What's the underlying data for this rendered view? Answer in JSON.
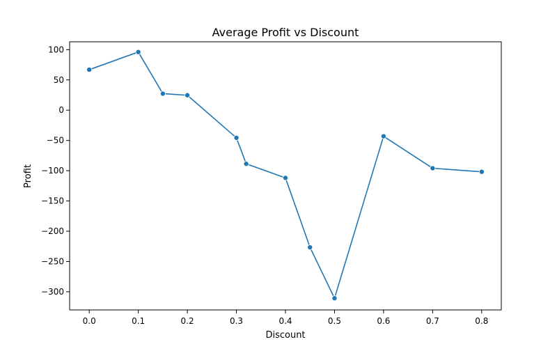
{
  "chart_data": {
    "type": "line",
    "title": "Average Profit vs Discount",
    "xlabel": "Discount",
    "ylabel": "Profit",
    "xlim": [
      -0.04,
      0.84
    ],
    "ylim": [
      -330,
      113
    ],
    "xticks": [
      0.0,
      0.1,
      0.2,
      0.3,
      0.4,
      0.5,
      0.6,
      0.7,
      0.8
    ],
    "xtick_labels": [
      "0.0",
      "0.1",
      "0.2",
      "0.3",
      "0.4",
      "0.5",
      "0.6",
      "0.7",
      "0.8"
    ],
    "yticks": [
      100,
      50,
      0,
      -50,
      -100,
      -150,
      -200,
      -250,
      -300
    ],
    "ytick_labels": [
      "100",
      "50",
      "0",
      "−50",
      "−100",
      "−150",
      "−200",
      "−250",
      "−300"
    ],
    "grid": false,
    "series": [
      {
        "color": "#1f77b4",
        "marker": "circle",
        "x": [
          0.0,
          0.1,
          0.15,
          0.2,
          0.3,
          0.32,
          0.4,
          0.45,
          0.5,
          0.6,
          0.7,
          0.8
        ],
        "y": [
          66.9,
          96.1,
          27.3,
          24.7,
          -45.7,
          -88.6,
          -111.9,
          -226.6,
          -310.7,
          -43.1,
          -95.9,
          -101.8
        ]
      }
    ]
  }
}
